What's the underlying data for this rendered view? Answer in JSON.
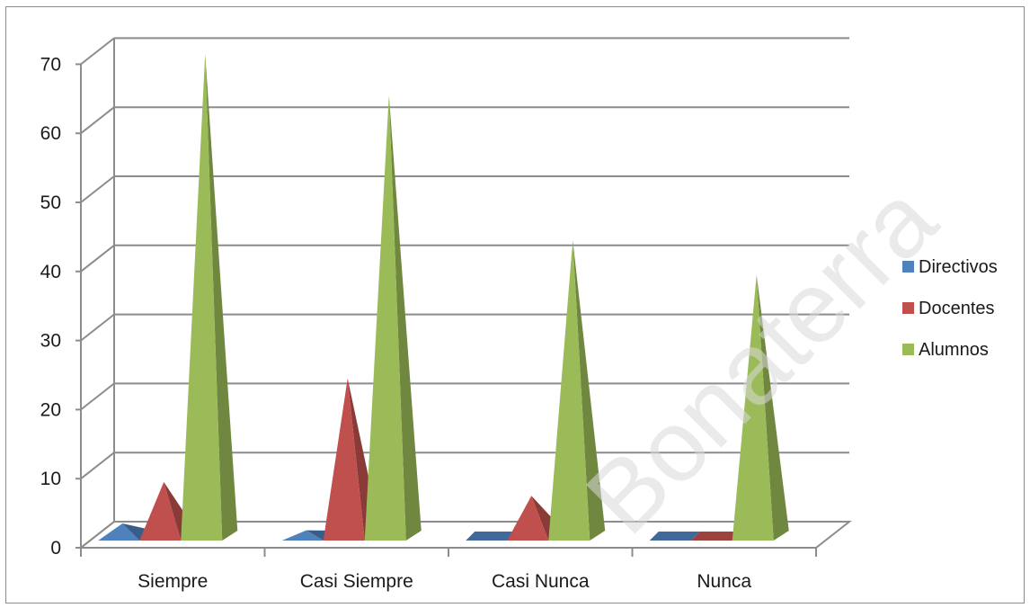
{
  "chart_data": {
    "type": "bar",
    "subtype": "3d-pyramid-clustered",
    "categories": [
      "Siempre",
      "Casi Siempre",
      "Casi Nunca",
      "Nunca"
    ],
    "series": [
      {
        "name": "Directivos",
        "color": "#4f81bd",
        "values": [
          3,
          2,
          0,
          0
        ]
      },
      {
        "name": "Docentes",
        "color": "#c0504d",
        "values": [
          9,
          24,
          7,
          0
        ]
      },
      {
        "name": "Alumnos",
        "color": "#9bbb59",
        "values": [
          71,
          65,
          44,
          39
        ]
      }
    ],
    "y_ticks": [
      "0",
      "10",
      "20",
      "30",
      "40",
      "50",
      "60",
      "70"
    ],
    "ylim": [
      0,
      70
    ],
    "grid": true,
    "legend_position": "right",
    "watermark": "Bonaterra"
  }
}
